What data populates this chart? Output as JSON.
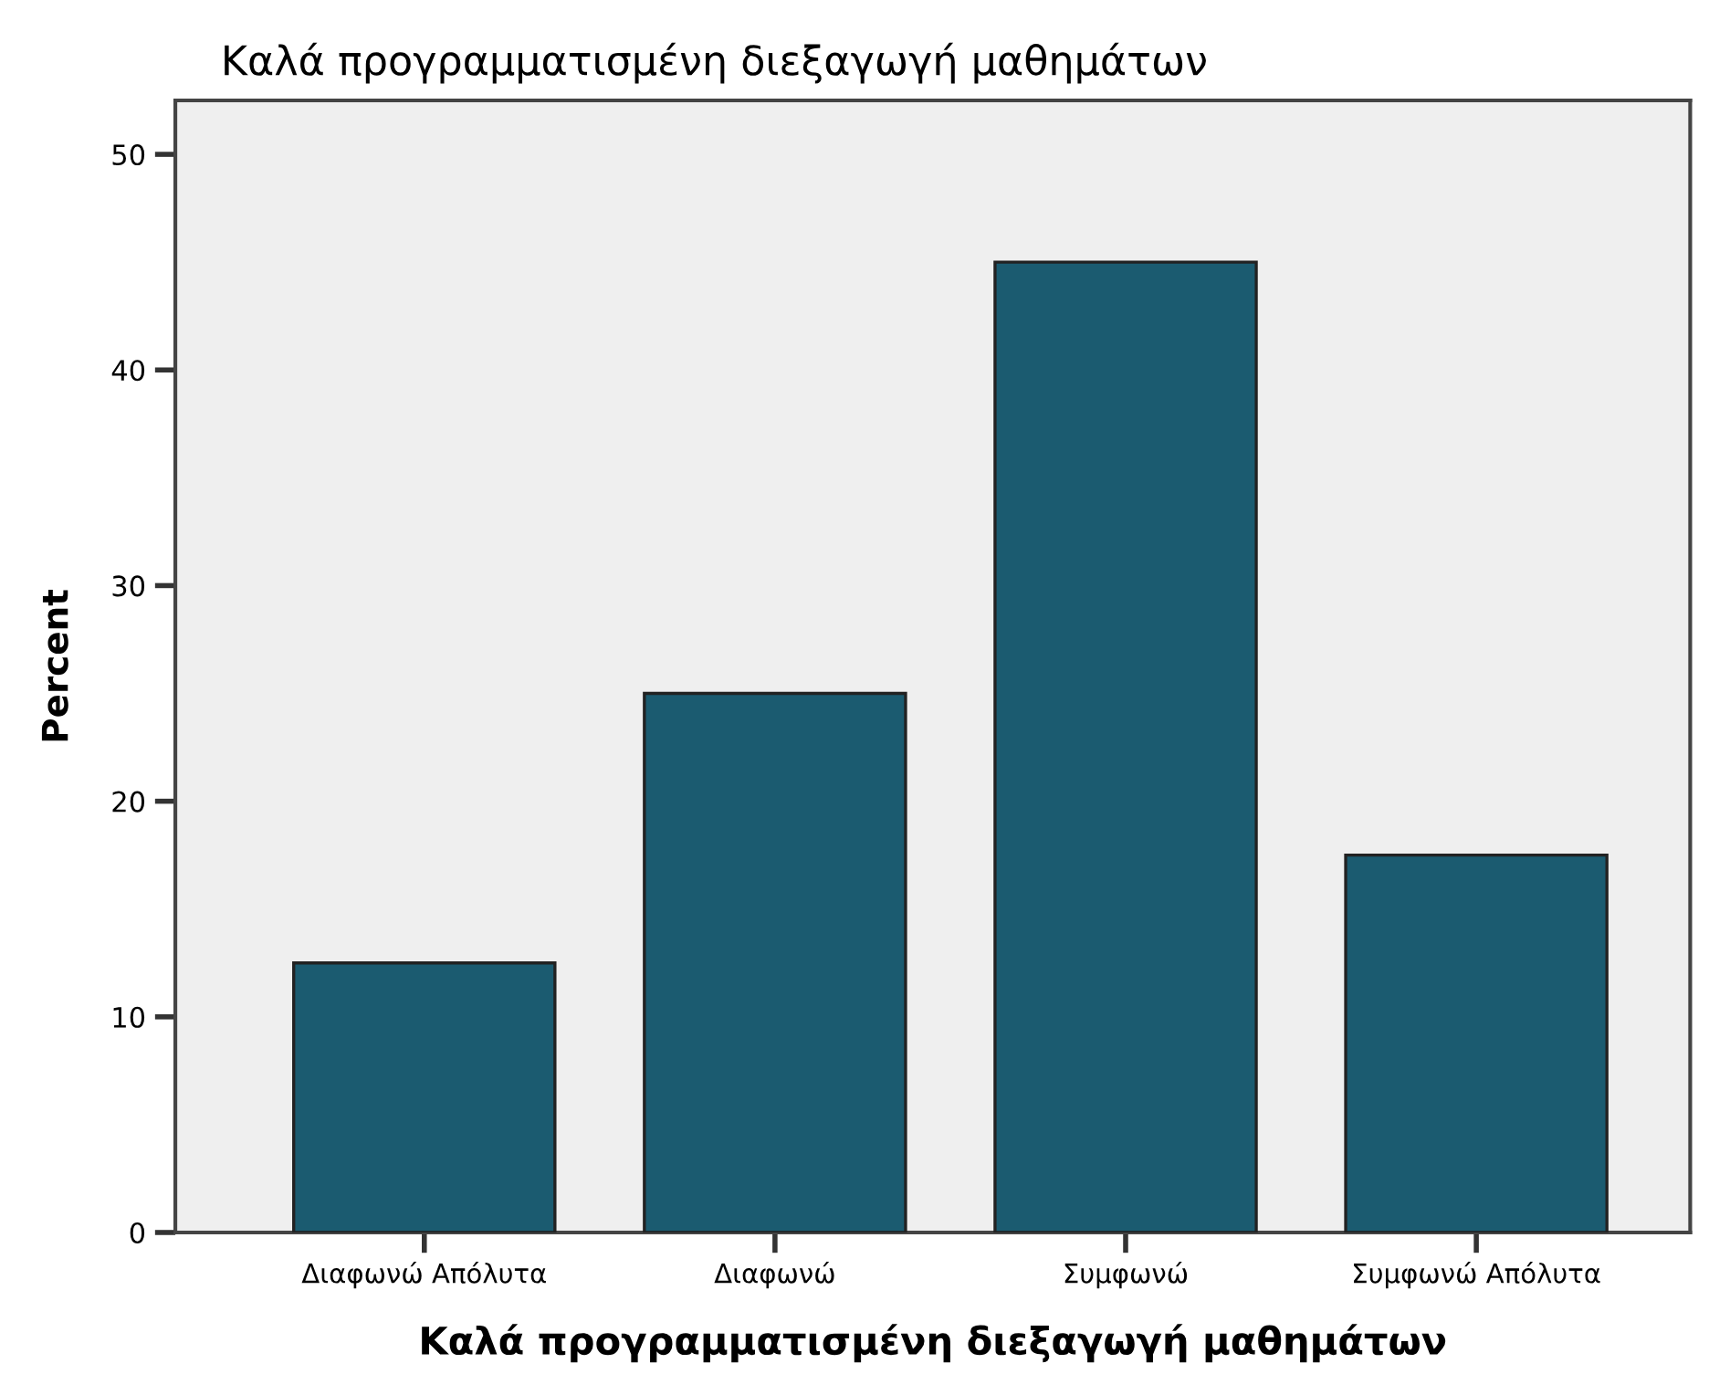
{
  "chart_data": {
    "type": "bar",
    "title": "Καλά προγραμματισμένη διεξαγωγή μαθημάτων",
    "xlabel": "Καλά προγραμματισμένη διεξαγωγή μαθημάτων",
    "ylabel": "Percent",
    "categories": [
      "Διαφωνώ Απόλυτα",
      "Διαφωνώ",
      "Συμφωνώ",
      "Συμφωνώ Απόλυτα"
    ],
    "values": [
      12.5,
      25,
      45,
      17.5
    ],
    "color": "#1b5b70",
    "ylim": [
      0,
      52.5
    ],
    "yticks": [
      0,
      10,
      20,
      30,
      40,
      50
    ],
    "grid": false,
    "legend": false
  }
}
